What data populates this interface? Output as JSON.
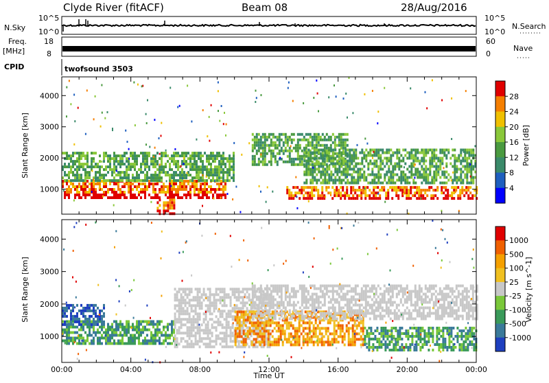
{
  "header": {
    "station": "Clyde River (fitACF)",
    "beam": "Beam 08",
    "date": "28/Aug/2016"
  },
  "summary_panels": {
    "nsky": {
      "label": "N.Sky",
      "tick_top": "10^5",
      "tick_bottom": "10^0",
      "right_label": "N.Search",
      "right_tick_top": "10^5",
      "right_tick_bottom": "10^0"
    },
    "freq": {
      "label_top": "Freq.",
      "label_bottom": "[MHz]",
      "tick_top": "18",
      "tick_bottom": "8",
      "right_label": "Nave",
      "right_tick_top": "60",
      "right_tick_bottom": "0"
    },
    "cpid": {
      "label": "CPID",
      "program": "twofsound 3503"
    }
  },
  "chart_data": [
    {
      "type": "heatmap",
      "name": "power",
      "ylabel": "Slant Range [km]",
      "xlabel": "",
      "x_range_hours": [
        0,
        24
      ],
      "ylim": [
        200,
        4600
      ],
      "yticks": [
        1000,
        2000,
        3000,
        4000
      ],
      "colorbar": {
        "label": "Power [dB]",
        "ticks": [
          "4",
          "8",
          "12",
          "16",
          "20",
          "24",
          "28"
        ],
        "colors": [
          "#0000ff",
          "#1e5fbf",
          "#3a8a6a",
          "#4a9a40",
          "#8ac83a",
          "#f0c000",
          "#f57f00",
          "#e00000"
        ]
      },
      "echo_bands": [
        {
          "t_start": 0.0,
          "t_end": 9.5,
          "range_min": 700,
          "range_max": 1300,
          "level": "high"
        },
        {
          "t_start": 0.0,
          "t_end": 10.0,
          "range_min": 1300,
          "range_max": 2200,
          "level": "mid"
        },
        {
          "t_start": 11.0,
          "t_end": 16.5,
          "range_min": 1800,
          "range_max": 2800,
          "level": "mid"
        },
        {
          "t_start": 13.0,
          "t_end": 24.0,
          "range_min": 700,
          "range_max": 1100,
          "level": "high"
        },
        {
          "t_start": 14.0,
          "t_end": 24.0,
          "range_min": 1200,
          "range_max": 2300,
          "level": "mid"
        },
        {
          "t_start": 5.5,
          "t_end": 6.5,
          "range_min": 200,
          "range_max": 700,
          "level": "high"
        }
      ]
    },
    {
      "type": "heatmap",
      "name": "velocity",
      "ylabel": "Slant Range [km]",
      "xlabel": "Time UT",
      "x_range_hours": [
        0,
        24
      ],
      "ylim": [
        200,
        4600
      ],
      "yticks": [
        1000,
        2000,
        3000,
        4000
      ],
      "xticks": [
        "00:00",
        "04:00",
        "08:00",
        "12:00",
        "16:00",
        "20:00",
        "00:00"
      ],
      "colorbar": {
        "label": "Velocity [m s^-1]",
        "ticks": [
          "1000",
          "500",
          "100",
          "25",
          "-25",
          "-100",
          "-500",
          "-1000"
        ],
        "colors": [
          "#1e3fbf",
          "#3a7a9a",
          "#3a9a5a",
          "#7ac83a",
          "#c8c8c8",
          "#f0c020",
          "#f5a000",
          "#f06000",
          "#e00000"
        ]
      },
      "echo_bands": [
        {
          "t_start": 0.0,
          "t_end": 6.5,
          "range_min": 800,
          "range_max": 1500,
          "level": "toward"
        },
        {
          "t_start": 0.0,
          "t_end": 2.5,
          "range_min": 1400,
          "range_max": 2000,
          "level": "toward_fast"
        },
        {
          "t_start": 6.5,
          "t_end": 12.0,
          "range_min": 700,
          "range_max": 2500,
          "level": "near_zero"
        },
        {
          "t_start": 10.0,
          "t_end": 17.5,
          "range_min": 700,
          "range_max": 1800,
          "level": "away"
        },
        {
          "t_start": 11.0,
          "t_end": 24.0,
          "range_min": 1500,
          "range_max": 2600,
          "level": "near_zero"
        },
        {
          "t_start": 17.5,
          "t_end": 24.0,
          "range_min": 600,
          "range_max": 1300,
          "level": "toward"
        }
      ]
    }
  ]
}
